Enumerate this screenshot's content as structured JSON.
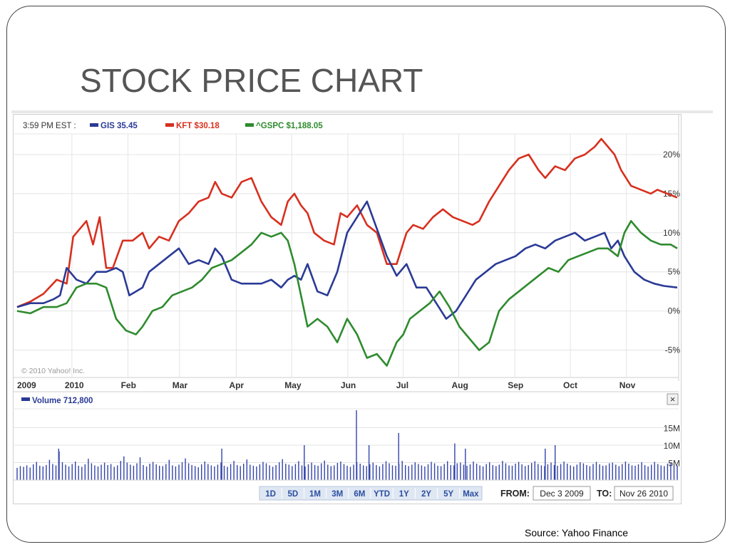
{
  "slide": {
    "title": "STOCK PRICE CHART",
    "source": "Source: Yahoo Finance"
  },
  "chart_data": {
    "type": "line",
    "time_label": "3:59 PM EST :",
    "tickers": [
      {
        "name": "GIS",
        "value": "35.45",
        "color": "#2a3a96"
      },
      {
        "name": "KFT",
        "value": "$30.18",
        "color": "#d7301f"
      },
      {
        "name": "^GSPC",
        "value": "$1,188.05",
        "color": "#2e8b2e"
      }
    ],
    "copyright": "© 2010 Yahoo! Inc.",
    "ylim": [
      -8.5,
      23
    ],
    "y_ticks": [
      20,
      15,
      10,
      5,
      0,
      -5
    ],
    "y_tick_labels": [
      "20%",
      "15%",
      "10%",
      "5%",
      "0%",
      "-5%"
    ],
    "x_ticks": [
      {
        "label": "2009",
        "t": 0
      },
      {
        "label": "2010",
        "t": 0.083
      },
      {
        "label": "Feb",
        "t": 0.168
      },
      {
        "label": "Mar",
        "t": 0.246
      },
      {
        "label": "Apr",
        "t": 0.332
      },
      {
        "label": "May",
        "t": 0.416
      },
      {
        "label": "Jun",
        "t": 0.501
      },
      {
        "label": "Jul",
        "t": 0.585
      },
      {
        "label": "Aug",
        "t": 0.669
      },
      {
        "label": "Sep",
        "t": 0.754
      },
      {
        "label": "Oct",
        "t": 0.838
      },
      {
        "label": "Nov",
        "t": 0.923
      }
    ],
    "series": [
      {
        "name": "KFT",
        "color": "#d7301f",
        "x": [
          0,
          0.02,
          0.04,
          0.06,
          0.075,
          0.085,
          0.095,
          0.105,
          0.115,
          0.125,
          0.135,
          0.145,
          0.16,
          0.175,
          0.19,
          0.2,
          0.215,
          0.23,
          0.245,
          0.26,
          0.275,
          0.29,
          0.3,
          0.31,
          0.325,
          0.34,
          0.355,
          0.37,
          0.385,
          0.4,
          0.41,
          0.42,
          0.43,
          0.44,
          0.45,
          0.465,
          0.48,
          0.49,
          0.5,
          0.515,
          0.53,
          0.545,
          0.56,
          0.575,
          0.59,
          0.6,
          0.615,
          0.63,
          0.645,
          0.66,
          0.675,
          0.69,
          0.7,
          0.715,
          0.73,
          0.745,
          0.76,
          0.775,
          0.79,
          0.8,
          0.815,
          0.83,
          0.845,
          0.86,
          0.875,
          0.885,
          0.895,
          0.905,
          0.915,
          0.93,
          0.945,
          0.96,
          0.97,
          0.985,
          1.0
        ],
        "values": [
          0.5,
          1.2,
          2.2,
          4,
          3.5,
          9.5,
          10.5,
          11.5,
          8.5,
          12,
          5.5,
          5.5,
          9,
          9,
          10,
          8,
          9.5,
          9,
          11.5,
          12.5,
          14,
          14.5,
          16.5,
          15,
          14.5,
          16.5,
          17,
          14,
          12,
          11,
          14,
          15,
          13.5,
          12.5,
          10,
          9,
          8.5,
          12.5,
          12,
          13.5,
          11,
          10,
          6,
          6,
          10,
          11,
          10.5,
          12,
          13,
          12,
          11.5,
          11,
          11.5,
          14,
          16,
          18,
          19.5,
          20,
          18,
          17,
          18.5,
          18,
          19.5,
          20,
          21,
          22,
          21,
          20,
          18,
          16,
          15.5,
          15,
          15.5,
          15,
          14.5
        ]
      },
      {
        "name": "GIS",
        "color": "#2a3a96",
        "x": [
          0,
          0.02,
          0.04,
          0.055,
          0.065,
          0.075,
          0.09,
          0.105,
          0.12,
          0.135,
          0.15,
          0.16,
          0.17,
          0.18,
          0.19,
          0.2,
          0.215,
          0.23,
          0.245,
          0.26,
          0.275,
          0.29,
          0.3,
          0.31,
          0.325,
          0.34,
          0.355,
          0.37,
          0.385,
          0.4,
          0.41,
          0.42,
          0.43,
          0.44,
          0.455,
          0.47,
          0.485,
          0.5,
          0.515,
          0.53,
          0.545,
          0.56,
          0.575,
          0.59,
          0.605,
          0.62,
          0.635,
          0.65,
          0.665,
          0.68,
          0.695,
          0.71,
          0.725,
          0.74,
          0.755,
          0.77,
          0.785,
          0.8,
          0.815,
          0.83,
          0.845,
          0.86,
          0.875,
          0.89,
          0.9,
          0.91,
          0.92,
          0.935,
          0.95,
          0.965,
          0.98,
          1.0
        ],
        "values": [
          0.5,
          1,
          1,
          1.5,
          2,
          5.5,
          4,
          3.5,
          5,
          5,
          5.5,
          5,
          2,
          2.5,
          3,
          5,
          6,
          7,
          8,
          6,
          6.5,
          6,
          8,
          7,
          4,
          3.5,
          3.5,
          3.5,
          4,
          3,
          4,
          4.5,
          4,
          6,
          2.5,
          2,
          5,
          10,
          12,
          14,
          10.5,
          7,
          4.5,
          6,
          3,
          3,
          1,
          -1,
          0,
          2,
          4,
          5,
          6,
          6.5,
          7,
          8,
          8.5,
          8,
          9,
          9.5,
          10,
          9,
          9.5,
          10,
          8,
          9,
          7,
          5,
          4,
          3.5,
          3.2,
          3
        ]
      },
      {
        "name": "^GSPC",
        "color": "#2e8b2e",
        "x": [
          0,
          0.02,
          0.04,
          0.06,
          0.075,
          0.09,
          0.105,
          0.12,
          0.135,
          0.15,
          0.165,
          0.18,
          0.19,
          0.205,
          0.22,
          0.235,
          0.25,
          0.265,
          0.28,
          0.295,
          0.31,
          0.325,
          0.34,
          0.355,
          0.37,
          0.385,
          0.4,
          0.41,
          0.42,
          0.43,
          0.44,
          0.455,
          0.47,
          0.485,
          0.5,
          0.515,
          0.53,
          0.545,
          0.56,
          0.575,
          0.585,
          0.595,
          0.61,
          0.625,
          0.64,
          0.655,
          0.67,
          0.685,
          0.7,
          0.715,
          0.73,
          0.745,
          0.76,
          0.775,
          0.79,
          0.805,
          0.82,
          0.835,
          0.85,
          0.865,
          0.88,
          0.895,
          0.91,
          0.92,
          0.93,
          0.945,
          0.96,
          0.975,
          0.99,
          1.0
        ],
        "values": [
          0,
          -0.3,
          0.5,
          0.5,
          1,
          3,
          3.5,
          3.5,
          3,
          -1,
          -2.5,
          -3,
          -2,
          0,
          0.5,
          2,
          2.5,
          3,
          4,
          5.5,
          6,
          6.5,
          7.5,
          8.5,
          10,
          9.5,
          10,
          9,
          6,
          2,
          -2,
          -1,
          -2,
          -4,
          -1,
          -3,
          -6,
          -5.5,
          -7,
          -4,
          -3,
          -1,
          0,
          1,
          2.5,
          0.5,
          -2,
          -3.5,
          -5,
          -4,
          0,
          1.5,
          2.5,
          3.5,
          4.5,
          5.5,
          5,
          6.5,
          7,
          7.5,
          8,
          8,
          7,
          10,
          11.5,
          10,
          9,
          8.5,
          8.5,
          8
        ]
      }
    ],
    "volume": {
      "label": "Volume 712,800",
      "y_tick_labels": [
        "15M",
        "10M",
        "5M"
      ],
      "y_ticks": [
        15,
        10,
        5
      ],
      "ylim": [
        0,
        20
      ],
      "base_values": [
        3.5,
        4,
        3.8,
        4.2,
        3.6,
        4.5,
        5.2,
        4.1,
        3.9,
        4.3,
        5.8,
        4.6,
        4.2,
        8.2,
        5.1,
        4.4,
        3.9,
        4.6,
        5.3,
        4.1,
        3.8,
        4.5,
        6.1,
        4.8,
        4.2,
        3.9,
        4.4,
        5,
        4.3,
        4.6,
        3.8,
        4.2,
        5.5,
        6.8,
        5,
        4.4,
        4.1,
        4.8,
        6.5,
        4.3,
        3.9,
        4.7,
        5.2,
        4.5,
        4.1,
        4,
        4.6,
        5.8,
        4.2,
        3.9,
        4.4,
        5.1,
        6.2,
        4.8,
        4.3,
        4,
        3.7,
        4.5,
        5.3,
        4.6,
        4.2,
        3.9,
        4.4,
        5,
        4.1,
        3.8,
        4.6,
        5.5,
        4.3,
        4,
        4.7,
        5.9,
        4.4,
        4.1,
        3.9,
        4.5,
        5.2,
        4.8,
        4.2,
        3.8,
        4.3,
        5.1,
        6,
        4.7,
        4.4,
        4,
        4.6,
        5.4,
        4.2,
        3.9,
        4.5,
        5,
        4.3,
        4.1,
        4.8,
        5.6,
        4.4,
        4,
        4.2,
        4.9,
        5.3,
        4.6,
        4.1,
        3.8,
        4.4,
        5.1,
        4.7,
        4.2,
        4,
        4.5,
        5,
        4.3,
        3.9,
        4.6,
        5.4,
        4.8,
        4.2,
        4.1,
        4.7,
        5.5,
        4.3,
        4,
        4.4,
        5.1,
        4.6,
        4.2,
        3.9,
        4.5,
        5.2,
        4.8,
        4.1,
        4,
        4.6,
        5.4,
        4.3,
        4.2,
        4.8,
        5,
        4.4,
        4.1,
        4.5,
        5.3,
        4.7,
        4.2,
        3.9,
        4.6,
        5.1,
        4.3,
        4,
        4.4,
        5.5,
        4.8,
        4.2,
        4.1,
        4.7,
        5.2,
        4.5,
        4,
        4.3,
        4.9,
        5.4,
        4.6,
        4.2,
        4,
        4.5,
        5,
        4.3,
        4.1,
        4.6,
        5.3,
        4.7,
        4.2,
        3.9,
        4.4,
        5.1,
        4.8,
        4.3,
        4,
        4.6,
        5.2,
        4.5,
        4.1,
        4.2,
        4.8,
        5,
        4.4,
        4,
        4.6,
        5.3,
        4.7,
        4.2,
        4.1,
        4.5,
        5.1,
        4.3,
        3.9,
        4.4,
        5.2,
        4.6,
        4.2,
        4,
        4.7,
        5,
        4.3,
        4.1
      ],
      "spikes": [
        {
          "t": 0.514,
          "v": 20
        },
        {
          "t": 0.578,
          "v": 13.5
        },
        {
          "t": 0.663,
          "v": 10.5
        },
        {
          "t": 0.815,
          "v": 10
        },
        {
          "t": 0.435,
          "v": 10
        },
        {
          "t": 0.063,
          "v": 9
        },
        {
          "t": 0.31,
          "v": 9
        },
        {
          "t": 0.679,
          "v": 9
        },
        {
          "t": 0.8,
          "v": 9
        },
        {
          "t": 0.533,
          "v": 10
        }
      ]
    },
    "controls": {
      "ranges": [
        "1D",
        "5D",
        "1M",
        "3M",
        "6M",
        "YTD",
        "1Y",
        "2Y",
        "5Y",
        "Max"
      ],
      "from_label": "FROM:",
      "from_value": "Dec 3 2009",
      "to_label": "TO:",
      "to_value": "Nov 26 2010",
      "close_label": "×"
    }
  }
}
